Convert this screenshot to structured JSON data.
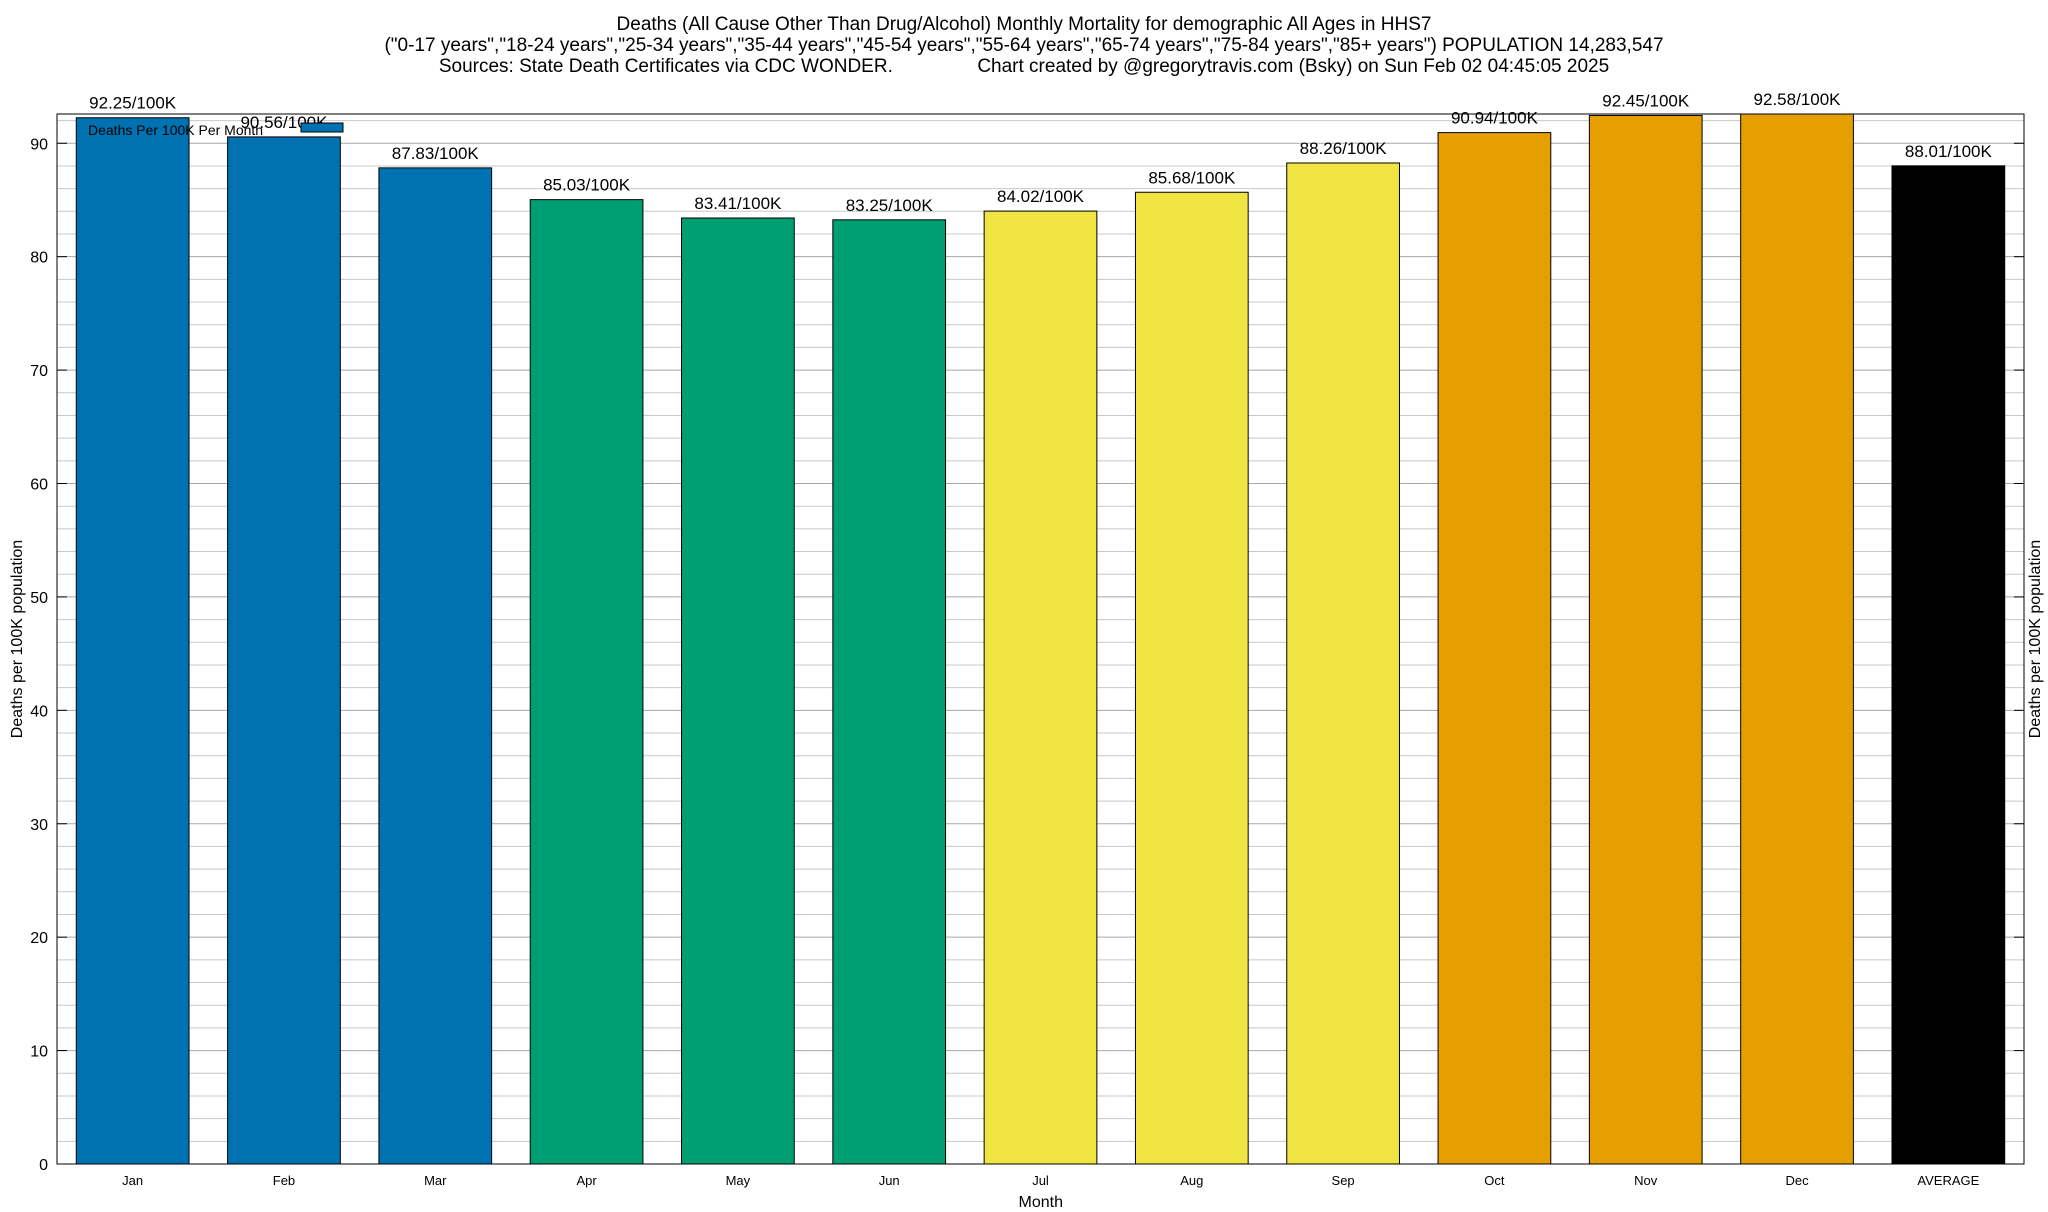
{
  "title_lines": [
    "Deaths (All Cause Other Than Drug/Alcohol) Monthly Mortality for demographic All Ages in HHS7",
    "(\"0-17 years\",\"18-24 years\",\"25-34 years\",\"35-44 years\",\"45-54 years\",\"55-64 years\",\"65-74 years\",\"75-84 years\",\"85+ years\") POPULATION 14,283,547",
    "Sources: State Death Certificates via CDC WONDER.                Chart created by @gregorytravis.com (Bsky) on Sun Feb 02 04:45:05 2025"
  ],
  "chart_data": {
    "type": "bar",
    "categories": [
      "Jan",
      "Feb",
      "Mar",
      "Apr",
      "May",
      "Jun",
      "Jul",
      "Aug",
      "Sep",
      "Oct",
      "Nov",
      "Dec",
      "AVERAGE"
    ],
    "values": [
      92.25,
      90.56,
      87.83,
      85.03,
      83.41,
      83.25,
      84.02,
      85.68,
      88.26,
      90.94,
      92.45,
      92.58,
      88.01
    ],
    "data_labels": [
      "92.25/100K",
      "90.56/100K",
      "87.83/100K",
      "85.03/100K",
      "83.41/100K",
      "83.25/100K",
      "84.02/100K",
      "85.68/100K",
      "88.26/100K",
      "90.94/100K",
      "92.45/100K",
      "92.58/100K",
      "88.01/100K"
    ],
    "colors": [
      "#0072b2",
      "#0072b2",
      "#0072b2",
      "#009e73",
      "#009e73",
      "#009e73",
      "#f0e442",
      "#f0e442",
      "#f0e442",
      "#e69f00",
      "#e69f00",
      "#e69f00",
      "#000000"
    ],
    "xlabel": "Month",
    "ylabel": "Deaths per 100K population",
    "y2label": "Deaths per 100K population",
    "ylim": [
      0,
      92.58
    ],
    "yticks": [
      0,
      10,
      20,
      30,
      40,
      50,
      60,
      70,
      80,
      90
    ],
    "minor_step": 2,
    "grid": true,
    "legend": {
      "label": "Deaths Per 100K Per Month",
      "color": "#0072b2",
      "placement": "top-left"
    }
  }
}
